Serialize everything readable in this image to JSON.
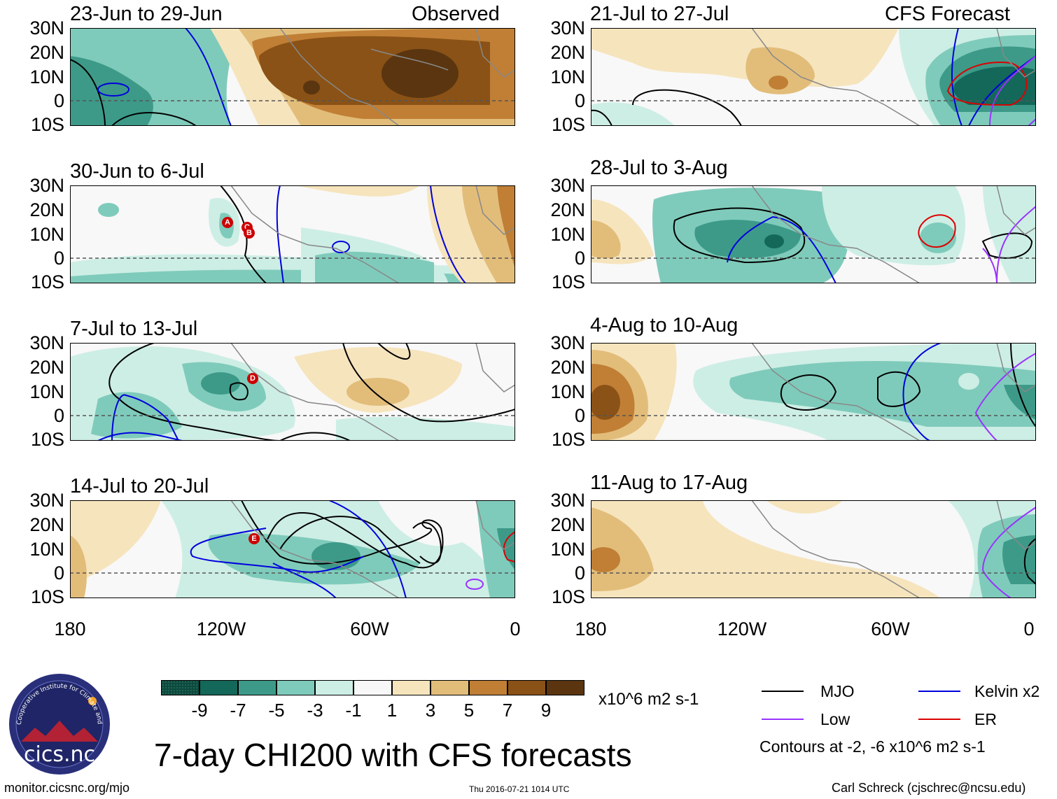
{
  "colors": {
    "ocean_dark": "#2a6e60",
    "teal": "#7fcbbb",
    "light_teal": "#cdeee5",
    "tan": "#f2dcb2",
    "dark_tan": "#e2bd7a",
    "brown": "#b8752f",
    "dark_brown": "#5a3510",
    "mjo": "#000000",
    "kelvin": "#0000dd",
    "low": "#9933ff",
    "er": "#dd0000"
  },
  "observed_label": "Observed",
  "forecast_label": "CFS Forecast",
  "latitude_labels": [
    "30N",
    "20N",
    "10N",
    "0",
    "10S"
  ],
  "longitude_labels": [
    "180",
    "120W",
    "60W",
    "0"
  ],
  "panels_left": [
    {
      "title": "23-Jun to 29-Jun"
    },
    {
      "title": "30-Jun to 6-Jul"
    },
    {
      "title": "7-Jul to 13-Jul"
    },
    {
      "title": "14-Jul to 20-Jul"
    }
  ],
  "panels_right": [
    {
      "title": "21-Jul to 27-Jul"
    },
    {
      "title": "28-Jul to 3-Aug"
    },
    {
      "title": "4-Aug to 10-Aug"
    },
    {
      "title": "11-Aug to 17-Aug"
    }
  ],
  "storm_markers": [
    "A",
    "C",
    "B",
    "D",
    "E"
  ],
  "colorbar": {
    "colors": [
      "#0d4a3e",
      "#13685a",
      "#3d9a88",
      "#7fcbbb",
      "#cdeee5",
      "#f8f8f8",
      "#f6e4bd",
      "#e2bd7a",
      "#c07f35",
      "#8a5216",
      "#5a3510"
    ],
    "labels": [
      "-9",
      "-7",
      "-5",
      "-3",
      "-1",
      "1",
      "3",
      "5",
      "7",
      "9"
    ],
    "units": "x10^6 m2 s-1"
  },
  "legend": {
    "mjo": "MJO",
    "kelvin": "Kelvin x2",
    "low": "Low",
    "er": "ER",
    "contours_note": "Contours at -2, -6 x10^6 m2 s-1"
  },
  "main_title": "7-day CHI200 with CFS forecasts",
  "logo_text": "cics.nc",
  "logo_ring_text": "Cooperative Institute for Climate and Satellites",
  "footer": {
    "url": "monitor.cicsnc.org/mjo",
    "timestamp": "Thu 2016-07-21 1014 UTC",
    "author": "Carl Schreck (cjschrec@ncsu.edu)"
  }
}
